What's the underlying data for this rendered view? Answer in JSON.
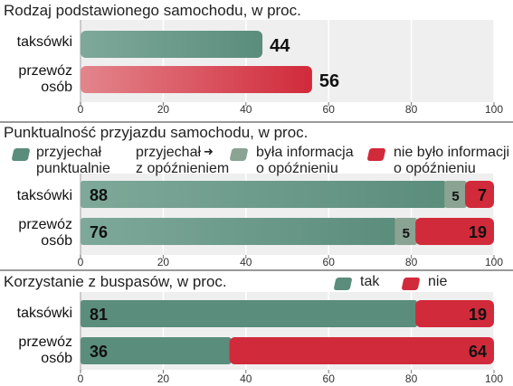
{
  "colors": {
    "teal": "#5b8d7c",
    "teal_light": "#7ea99a",
    "gray_green": "#8aa393",
    "red": "#d12a3a",
    "red_light": "#e3858c",
    "band": "#efefef",
    "grid": "#ffffff"
  },
  "chart_data": [
    {
      "type": "bar",
      "title": "Rodzaj podstawionego samochodu, w proc.",
      "categories": [
        "taksówki",
        "przewóz\nosób"
      ],
      "series": [
        {
          "values": [
            44,
            56
          ]
        }
      ],
      "xlim": [
        0,
        100
      ],
      "xticks": [
        "0",
        "20",
        "40",
        "60",
        "80",
        "100"
      ],
      "grid": true
    },
    {
      "type": "bar",
      "stacked": true,
      "title": "Punktualność przyjazdu samochodu, w proc.",
      "categories": [
        "taksówki",
        "przewóz\nosób"
      ],
      "series": [
        {
          "name": "przyjechał\npunktualnie",
          "values": [
            88,
            76
          ]
        },
        {
          "name": "przyjechał z opóźnieniem → była informacja o opóźnieniu",
          "values": [
            5,
            5
          ]
        },
        {
          "name": "przyjechał z opóźnieniem → nie było informacji o opóźnieniu",
          "values": [
            7,
            19
          ]
        }
      ],
      "legend": {
        "group_label": "przyjechał\nz opóźnieniem",
        "items": [
          "przyjechał\npunktualnie",
          "była informacja\no opóźnieniu",
          "nie było informacji\no opóźnieniu"
        ]
      },
      "xlim": [
        0,
        100
      ],
      "xticks": [
        "0",
        "20",
        "40",
        "60",
        "80",
        "100"
      ],
      "grid": true
    },
    {
      "type": "bar",
      "stacked": true,
      "title": "Korzystanie z buspasów, w proc.",
      "categories": [
        "taksówki",
        "przewóz\nosób"
      ],
      "series": [
        {
          "name": "tak",
          "values": [
            81,
            36
          ]
        },
        {
          "name": "nie",
          "values": [
            19,
            64
          ]
        }
      ],
      "xlim": [
        0,
        100
      ],
      "xticks": [
        "0",
        "20",
        "40",
        "60",
        "80",
        "100"
      ],
      "grid": true,
      "legend": "top-right"
    }
  ]
}
